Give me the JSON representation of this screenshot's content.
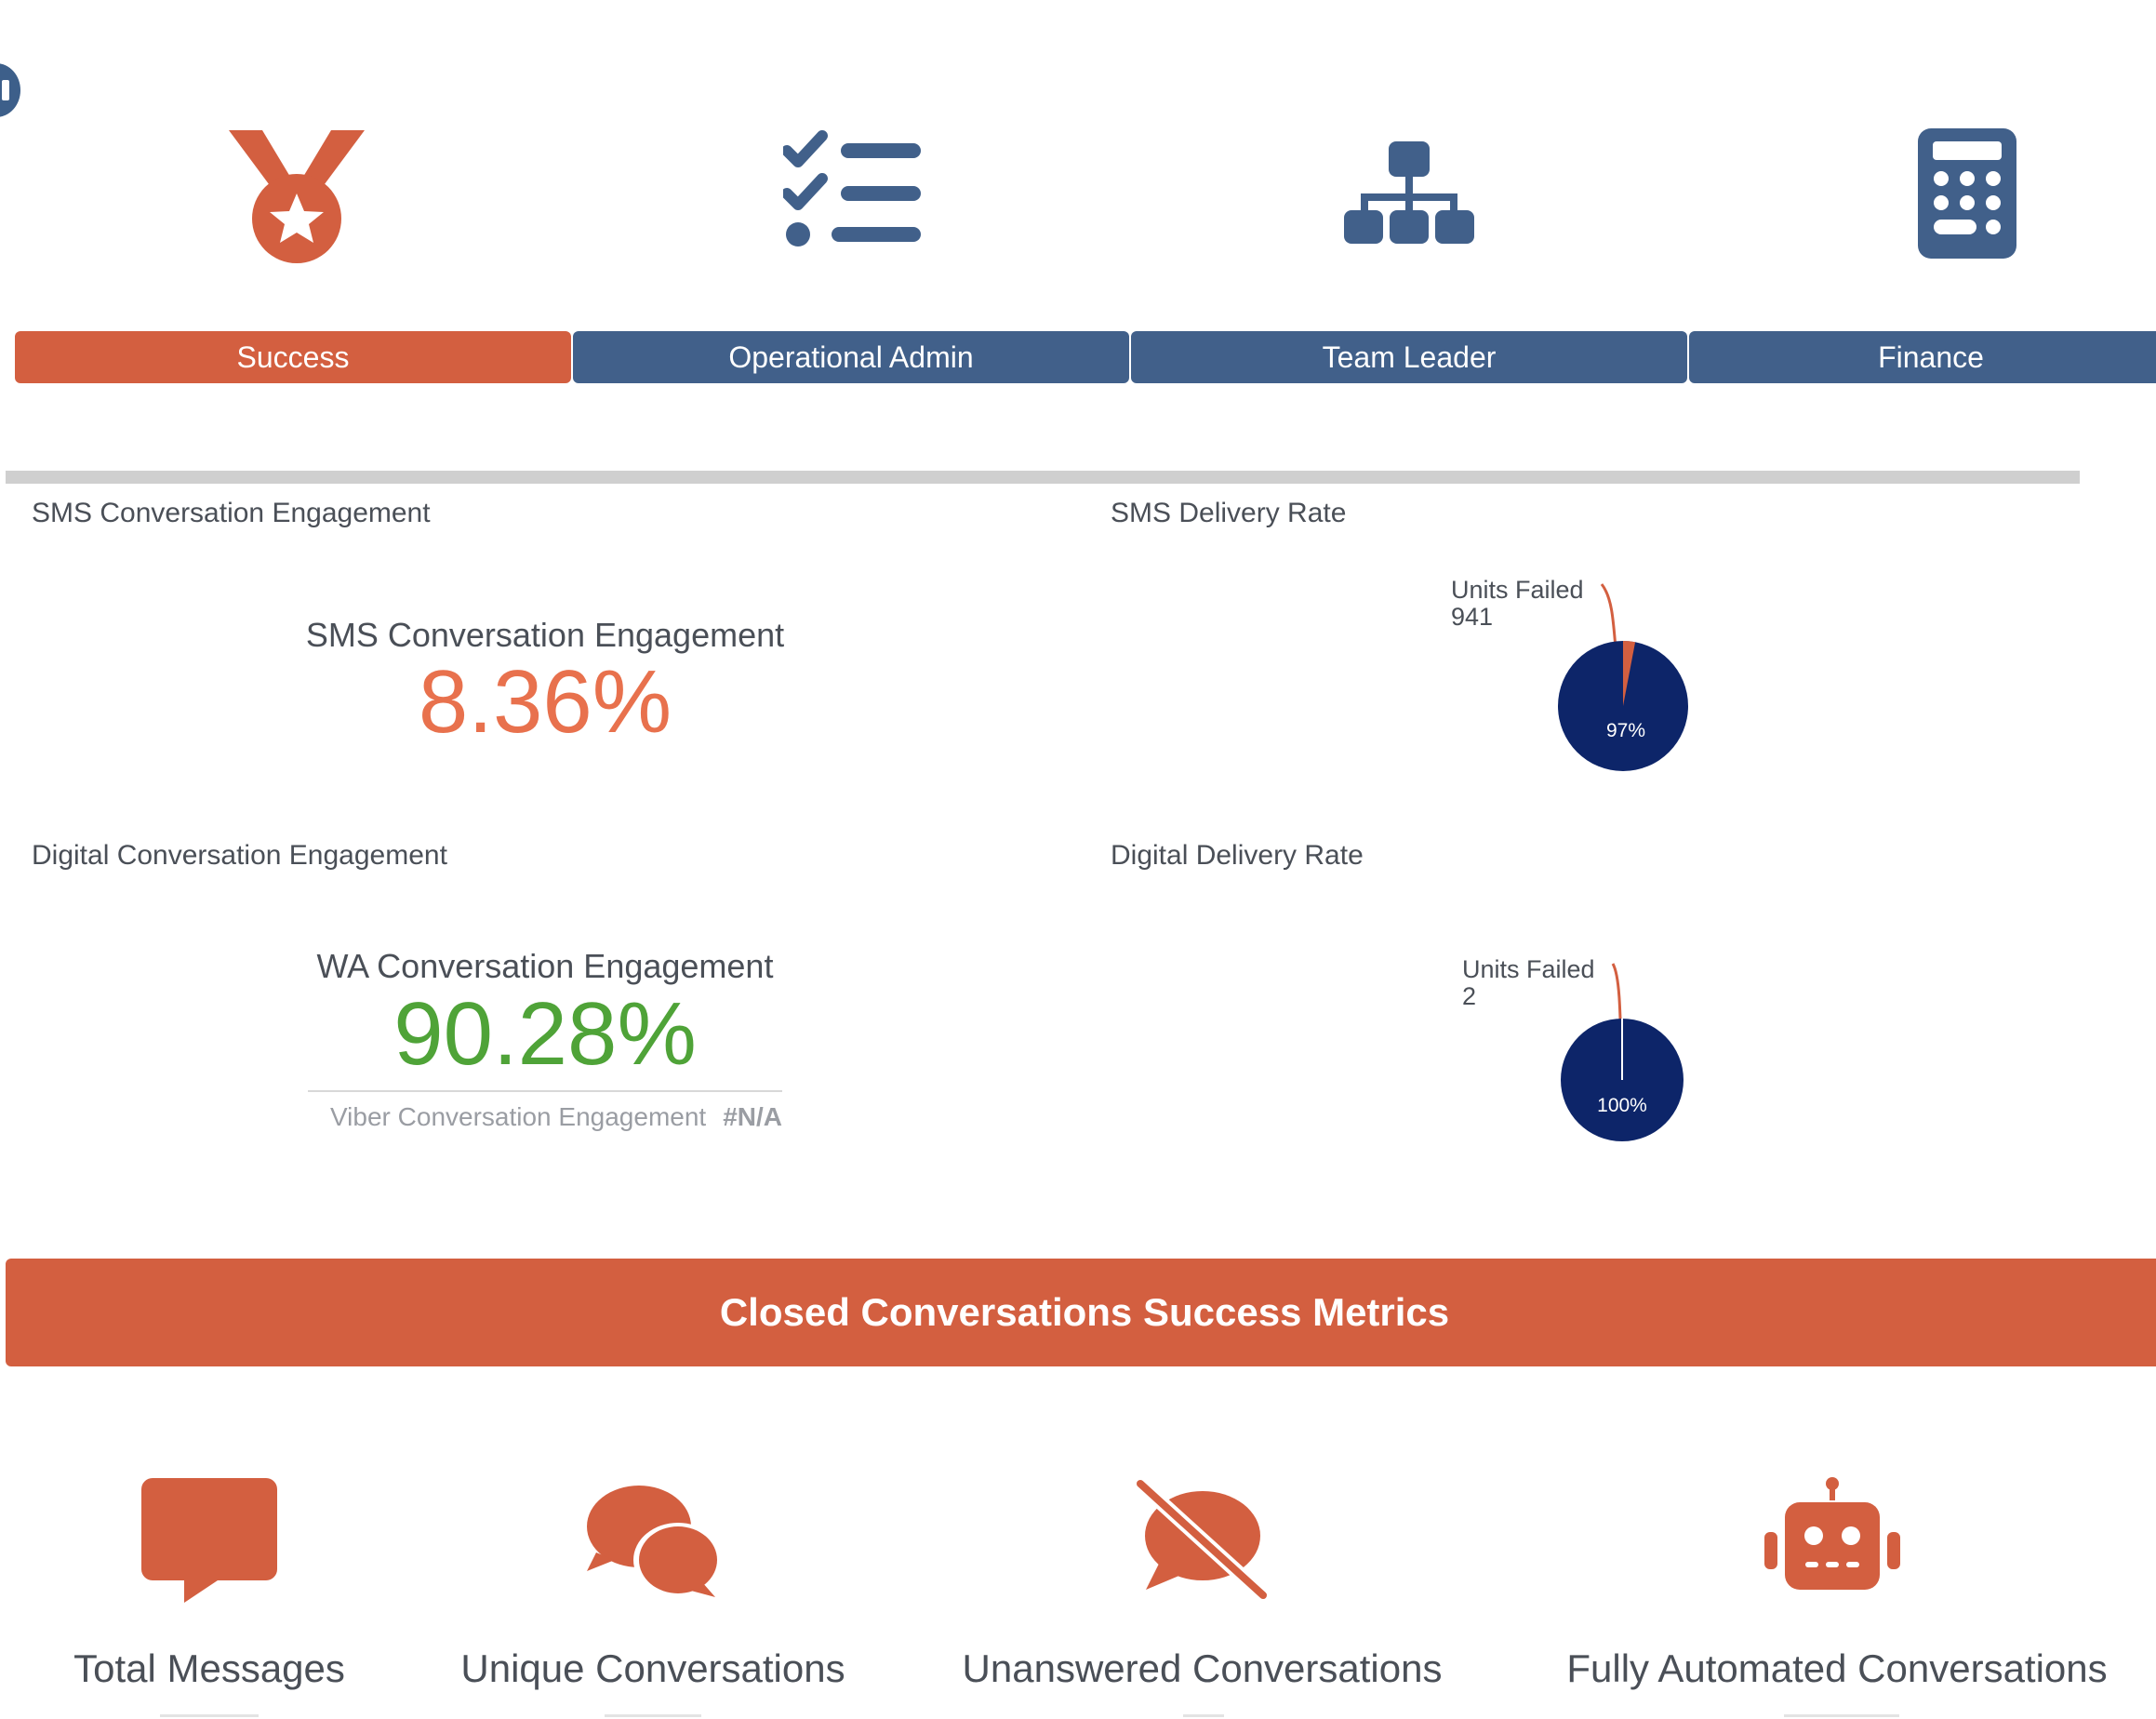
{
  "colors": {
    "accent": "#d35f40",
    "navy": "#41608a",
    "pie_primary": "#0d2569",
    "green": "#4fa338"
  },
  "icons": [
    "medal-icon",
    "checklist-icon",
    "org-chart-icon",
    "calculator-icon",
    "message-icon",
    "comments-icon",
    "comment-slash-icon",
    "robot-icon"
  ],
  "tabs": [
    {
      "label": "Success",
      "active": true
    },
    {
      "label": "Operational Admin",
      "active": false
    },
    {
      "label": "Team Leader",
      "active": false
    },
    {
      "label": "Finance",
      "active": false
    }
  ],
  "panels": {
    "sms_engagement": {
      "title": "SMS Conversation Engagement",
      "kpi_label": "SMS Conversation Engagement",
      "kpi_value": "8.36%"
    },
    "digital_engagement": {
      "title": "Digital Conversation Engagement",
      "kpi_label": "WA Conversation Engagement",
      "kpi_value": "90.28%",
      "sub_label": "Viber Conversation Engagement",
      "sub_value": "#N/A"
    },
    "sms_delivery": {
      "title": "SMS Delivery Rate",
      "callout_label": "Units Failed",
      "callout_value": "941",
      "inner_label": "97%"
    },
    "digital_delivery": {
      "title": "Digital Delivery Rate",
      "callout_label": "Units Failed",
      "callout_value": "2",
      "inner_label": "100%"
    }
  },
  "chart_data": [
    {
      "type": "pie",
      "title": "SMS Delivery Rate",
      "slices": [
        {
          "label": "Units Failed",
          "value": 941,
          "percent": 3
        },
        {
          "label": "",
          "percent": 97
        }
      ]
    },
    {
      "type": "pie",
      "title": "Digital Delivery Rate",
      "slices": [
        {
          "label": "Units Failed",
          "value": 2,
          "percent": 0
        },
        {
          "label": "",
          "percent": 100
        }
      ]
    }
  ],
  "banner": {
    "title": "Closed Conversations Success Metrics"
  },
  "metrics": [
    {
      "label": "Total Messages"
    },
    {
      "label": "Unique Conversations"
    },
    {
      "label": "Unanswered Conversations"
    },
    {
      "label": "Fully Automated Conversations"
    }
  ]
}
